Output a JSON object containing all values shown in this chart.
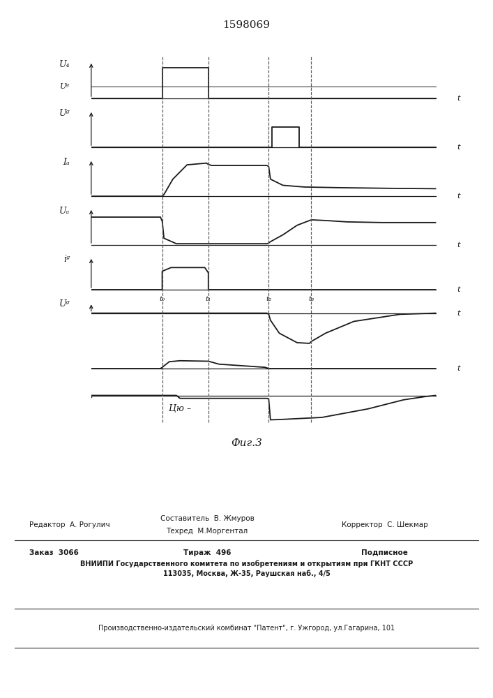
{
  "title": "1598069",
  "fig_label": "Фиг.3",
  "line_color": "#1a1a1a",
  "t0": 0.2,
  "t1": 0.33,
  "t2": 0.5,
  "t3": 0.62,
  "footer_line1": "Составитель  В. Жмуров",
  "footer_line2": "Техред  М.Моргентал",
  "footer_editor": "Редактор  А. Рогулич",
  "footer_corrector": "Корректор  С. Шекмар",
  "footer_zakaz": "Заказ  3066",
  "footer_tirazh": "Тираж  496",
  "footer_podpisnoe": "Подписное",
  "footer_vniiipi": "ВНИИПИ Государственного комитета по изобретениям и открытиям при ГКНТ СССР",
  "footer_address": "113035, Москва, Ж-35, Раушская наб., 4/5",
  "footer_patent": "Производственно-издательский комбинат \"Патент\", г. Ужгород, ул.Гагарина, 101"
}
